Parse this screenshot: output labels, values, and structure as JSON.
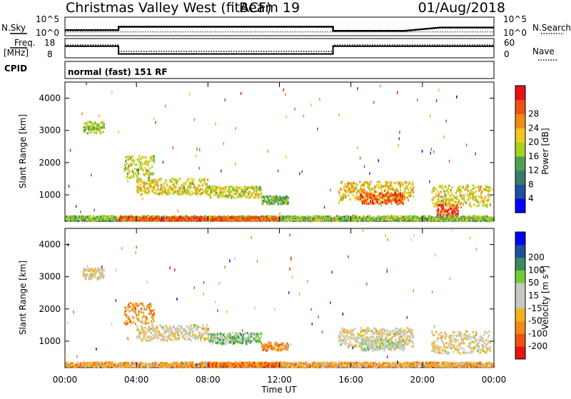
{
  "header": {
    "station": "Christmas Valley West (fitACF)",
    "beam": "Beam 19",
    "date": "01/Aug/2018"
  },
  "top_panels": {
    "nsky_label": "N.Sky",
    "nsky_ticks": [
      "10^5",
      "10^0"
    ],
    "nsearch_label": "N.Search",
    "nsearch_ticks": [
      "10^5",
      "10^0"
    ],
    "freq_label_1": "Freq.",
    "freq_label_2": "[MHz]",
    "freq_ticks": [
      "18",
      "8"
    ],
    "nave_label": "Nave",
    "nave_ticks": [
      "60",
      "0"
    ],
    "cpid_label": "CPID",
    "cpid_text": "normal (fast) 151 RF"
  },
  "time_axis": {
    "title": "Time UT",
    "ticks": [
      "00:00",
      "04:00",
      "08:00",
      "12:00",
      "16:00",
      "20:00",
      "00:00"
    ]
  },
  "colors": {
    "power_scale": [
      "#0000ff",
      "#1e4fa0",
      "#3a7a6a",
      "#4ea24e",
      "#a6d21e",
      "#f0c81e",
      "#f08c14",
      "#f05014",
      "#e61414"
    ],
    "velocity_scale": [
      "#e61414",
      "#f05014",
      "#f08c14",
      "#f0b41e",
      "#c8c8c0",
      "#c8c8c0",
      "#6ecc3a",
      "#3a8c5a",
      "#1e4fa0",
      "#0000ff"
    ]
  },
  "chart_data": [
    {
      "type": "line",
      "title": "N.Sky / N.Search",
      "xlabel": "Time UT",
      "x_range": [
        0,
        24
      ],
      "series": [
        {
          "name": "N.Sky",
          "x": [
            0,
            3,
            3,
            15,
            15,
            19,
            21,
            24
          ],
          "y": [
            1.5,
            1.5,
            2.4,
            2.4,
            1.3,
            1.3,
            2.2,
            2.2
          ]
        },
        {
          "name": "N.Search",
          "x": [
            0,
            24
          ],
          "y": [
            1.0,
            1.0
          ]
        }
      ]
    },
    {
      "type": "line",
      "title": "Freq. / Nave",
      "x_range": [
        0,
        24
      ],
      "freq_ylim": [
        8,
        18
      ],
      "nave_ylim": [
        0,
        60
      ],
      "series": [
        {
          "name": "Freq. [MHz]",
          "x": [
            0,
            3,
            3,
            15,
            15,
            24
          ],
          "y": [
            14,
            14,
            10,
            10,
            14,
            14
          ]
        },
        {
          "name": "Nave",
          "x": [
            0,
            3,
            3,
            15,
            15,
            24
          ],
          "y": [
            40,
            40,
            20,
            20,
            40,
            40
          ]
        }
      ]
    },
    {
      "type": "heatmap",
      "title": "Power [dB]",
      "xlabel": "Time UT",
      "ylabel": "Slant Range [km]",
      "x_range": [
        0,
        24
      ],
      "ylim": [
        180,
        4500
      ],
      "y_ticks": [
        1000,
        2000,
        3000,
        4000
      ],
      "colorbar_label": "Power [dB]",
      "colorbar_ticks": [
        4,
        8,
        12,
        16,
        20,
        24,
        28
      ],
      "colorbar_range": [
        0,
        32
      ],
      "patches": [
        {
          "t0": 1.0,
          "t1": 2.2,
          "r0": 2900,
          "r1": 3250,
          "level": 0.5
        },
        {
          "t0": 3.3,
          "t1": 5.0,
          "r0": 1500,
          "r1": 2200,
          "level": 0.55
        },
        {
          "t0": 4.0,
          "t1": 8.0,
          "r0": 1000,
          "r1": 1500,
          "level": 0.6
        },
        {
          "t0": 8.0,
          "t1": 11.0,
          "r0": 900,
          "r1": 1250,
          "level": 0.55
        },
        {
          "t0": 11.0,
          "t1": 12.5,
          "r0": 700,
          "r1": 950,
          "level": 0.4
        },
        {
          "t0": 15.3,
          "t1": 19.5,
          "r0": 800,
          "r1": 1400,
          "level": 0.65
        },
        {
          "t0": 16.5,
          "t1": 19.0,
          "r0": 700,
          "r1": 1050,
          "level": 0.85
        },
        {
          "t0": 20.5,
          "t1": 23.8,
          "r0": 600,
          "r1": 1300,
          "level": 0.6
        },
        {
          "t0": 20.8,
          "t1": 22.0,
          "r0": 300,
          "r1": 700,
          "level": 0.9
        },
        {
          "t0": 0.0,
          "t1": 24.0,
          "r0": 180,
          "r1": 330,
          "level": 0.45
        },
        {
          "t0": 3.0,
          "t1": 12.0,
          "r0": 190,
          "r1": 300,
          "level": 0.85
        }
      ]
    },
    {
      "type": "heatmap",
      "title": "Velocity [m s^-1]",
      "xlabel": "Time UT",
      "ylabel": "Slant Range [km]",
      "x_range": [
        0,
        24
      ],
      "ylim": [
        180,
        4500
      ],
      "y_ticks": [
        1000,
        2000,
        3000,
        4000
      ],
      "colorbar_label": "Velocity [m s",
      "colorbar_label_sup": "-1",
      "colorbar_label_end": "]",
      "colorbar_ticks": [
        "-200",
        "-100",
        "-50",
        "-15",
        "15",
        "50",
        "100",
        "200"
      ],
      "patches": [
        {
          "t0": 1.0,
          "t1": 2.2,
          "r0": 2900,
          "r1": 3250,
          "level": 0.45
        },
        {
          "t0": 3.3,
          "t1": 5.0,
          "r0": 1500,
          "r1": 2200,
          "level": 0.25
        },
        {
          "t0": 4.0,
          "t1": 8.0,
          "r0": 1000,
          "r1": 1500,
          "level": 0.45
        },
        {
          "t0": 8.0,
          "t1": 11.0,
          "r0": 900,
          "r1": 1250,
          "level": 0.65
        },
        {
          "t0": 11.0,
          "t1": 12.5,
          "r0": 700,
          "r1": 950,
          "level": 0.25
        },
        {
          "t0": 15.3,
          "t1": 19.5,
          "r0": 800,
          "r1": 1400,
          "level": 0.45
        },
        {
          "t0": 16.5,
          "t1": 19.0,
          "r0": 700,
          "r1": 1050,
          "level": 0.55
        },
        {
          "t0": 20.5,
          "t1": 23.8,
          "r0": 600,
          "r1": 1300,
          "level": 0.45
        },
        {
          "t0": 0.0,
          "t1": 24.0,
          "r0": 180,
          "r1": 330,
          "level": 0.3
        },
        {
          "t0": 8.0,
          "t1": 12.0,
          "r0": 190,
          "r1": 320,
          "level": 0.2
        }
      ]
    }
  ]
}
